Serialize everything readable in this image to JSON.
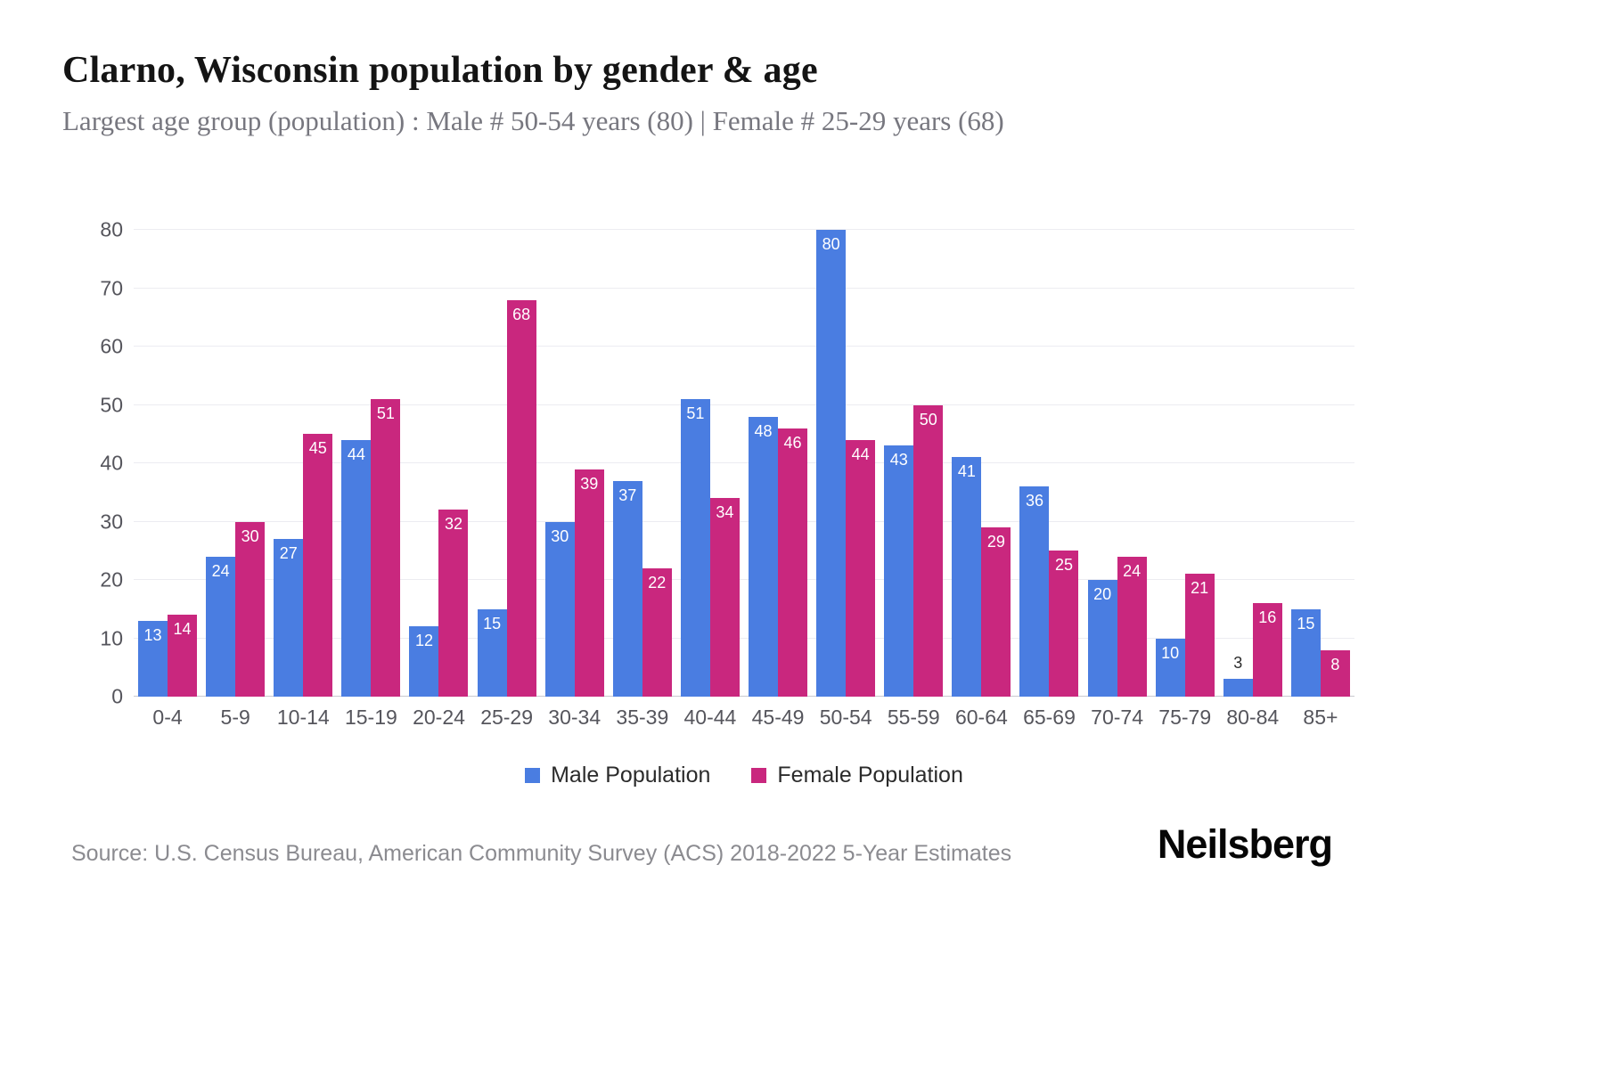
{
  "header": {
    "title": "Clarno, Wisconsin population by gender & age",
    "subtitle": "Largest age group (population) : Male # 50-54 years (80) | Female # 25-29 years (68)"
  },
  "chart_data": {
    "type": "bar",
    "title": "Clarno, Wisconsin population by gender & age",
    "categories": [
      "0-4",
      "5-9",
      "10-14",
      "15-19",
      "20-24",
      "25-29",
      "30-34",
      "35-39",
      "40-44",
      "45-49",
      "50-54",
      "55-59",
      "60-64",
      "65-69",
      "70-74",
      "75-79",
      "80-84",
      "85+"
    ],
    "series": [
      {
        "name": "Male Population",
        "color": "#4a7de1",
        "values": [
          13,
          24,
          27,
          44,
          12,
          15,
          30,
          37,
          51,
          48,
          80,
          43,
          41,
          36,
          20,
          10,
          3,
          15
        ]
      },
      {
        "name": "Female Population",
        "color": "#c9277e",
        "values": [
          14,
          30,
          45,
          51,
          32,
          68,
          39,
          22,
          34,
          46,
          44,
          50,
          29,
          25,
          24,
          21,
          16,
          8
        ]
      }
    ],
    "xlabel": "",
    "ylabel": "",
    "ylim": [
      0,
      80
    ],
    "ytick_interval": 10,
    "grid": true,
    "legend_position": "bottom",
    "value_labels": true
  },
  "footer": {
    "source": "Source: U.S. Census Bureau, American Community Survey (ACS) 2018-2022 5-Year Estimates",
    "brand": "Neilsberg"
  }
}
